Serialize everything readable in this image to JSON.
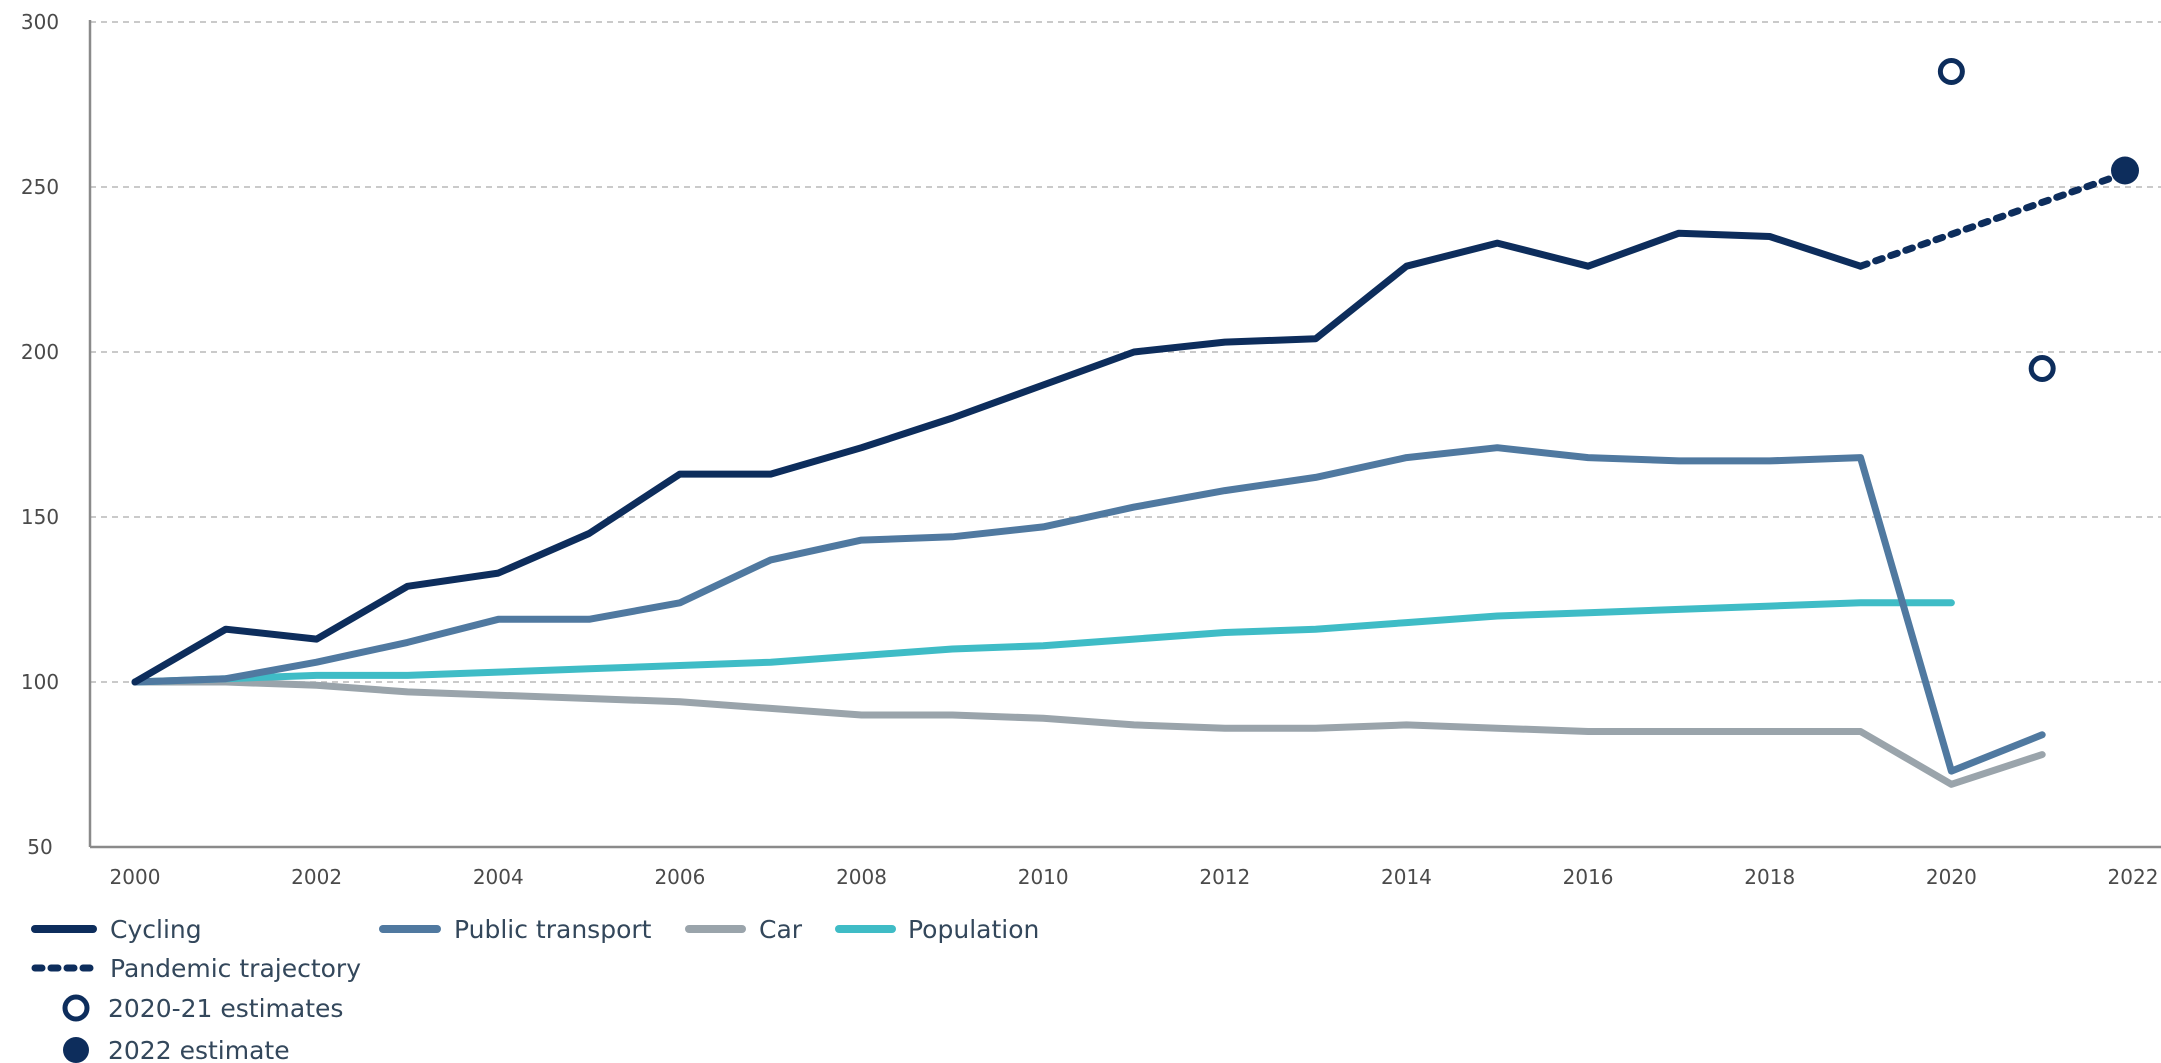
{
  "chart_data": {
    "type": "line",
    "title": "",
    "xlabel": "",
    "ylabel": "",
    "xlim": [
      2000,
      2022
    ],
    "ylim": [
      50,
      300
    ],
    "y_ticks": [
      "50",
      "100",
      "150",
      "200",
      "250",
      "300"
    ],
    "x_ticks": [
      "2000",
      "2002",
      "2004",
      "2006",
      "2008",
      "2010",
      "2012",
      "2014",
      "2016",
      "2018",
      "2020",
      "2022"
    ],
    "grid": "horizontal dashed",
    "legend_position": "bottom-left",
    "x": [
      2000,
      2001,
      2002,
      2003,
      2004,
      2005,
      2006,
      2007,
      2008,
      2009,
      2010,
      2011,
      2012,
      2013,
      2014,
      2015,
      2016,
      2017,
      2018,
      2019,
      2020,
      2021
    ],
    "series": [
      {
        "name": "Cycling",
        "color": "#0d2d5c",
        "values": [
          100,
          116,
          113,
          129,
          133,
          145,
          163,
          163,
          171,
          180,
          190,
          200,
          203,
          204,
          226,
          233,
          226,
          236,
          235,
          226,
          null,
          null
        ]
      },
      {
        "name": "Public transport",
        "color": "#5079a0",
        "values": [
          100,
          101,
          106,
          112,
          119,
          119,
          124,
          137,
          143,
          144,
          147,
          153,
          158,
          162,
          168,
          171,
          168,
          167,
          167,
          168,
          73,
          84
        ]
      },
      {
        "name": "Car",
        "color": "#9aa4ab",
        "values": [
          100,
          100,
          99,
          97,
          96,
          95,
          94,
          92,
          90,
          90,
          89,
          87,
          86,
          86,
          87,
          86,
          85,
          85,
          85,
          85,
          69,
          78
        ]
      },
      {
        "name": "Population",
        "color": "#3fbcc6",
        "values": [
          100,
          101,
          102,
          102,
          103,
          104,
          105,
          106,
          108,
          110,
          111,
          113,
          115,
          116,
          118,
          120,
          121,
          122,
          123,
          124,
          124,
          null
        ]
      }
    ],
    "pandemic_trajectory": {
      "name": "Pandemic trajectory",
      "color": "#0d2d5c",
      "points": [
        [
          2019,
          226
        ],
        [
          2022,
          255
        ]
      ]
    },
    "estimates_2020_21": {
      "name": "2020-21 estimates",
      "color": "#0d2d5c",
      "points": [
        [
          2020,
          285
        ],
        [
          2021,
          195
        ]
      ]
    },
    "estimate_2022": {
      "name": "2022 estimate",
      "color": "#0d2d5c",
      "points": [
        [
          2022,
          255
        ]
      ]
    }
  }
}
